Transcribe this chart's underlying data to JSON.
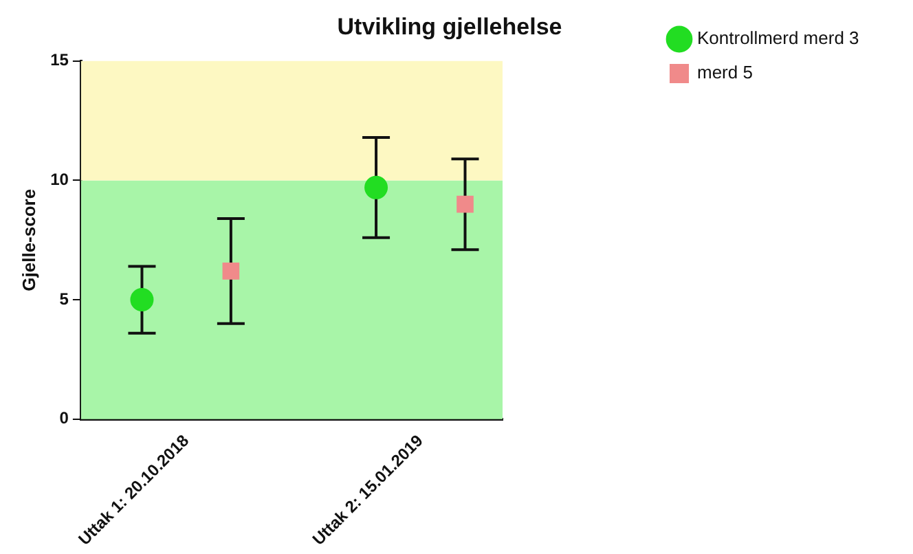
{
  "chart_data": {
    "type": "scatter",
    "title": "Utvikling gjellehelse",
    "ylabel": "Gjelle-score",
    "categories": [
      "Uttak 1: 20.10.2018",
      "Uttak 2: 15.01.2019"
    ],
    "series": [
      {
        "name": "Kontrollmerd merd 3",
        "color": "#22dd22",
        "marker": "circle",
        "values": [
          5.0,
          9.7
        ],
        "errors": [
          [
            3.6,
            6.4
          ],
          [
            7.6,
            11.8
          ]
        ]
      },
      {
        "name": "merd 5",
        "color": "#f08a8a",
        "marker": "square",
        "values": [
          6.2,
          9.0
        ],
        "errors": [
          [
            4.0,
            8.4
          ],
          [
            7.1,
            10.9
          ]
        ]
      }
    ],
    "ylim": [
      0,
      15
    ],
    "yticks": [
      0,
      5,
      10,
      15
    ],
    "grid": false,
    "legend": "top right",
    "bands": [
      {
        "axis": "y",
        "from": 0,
        "to": 10,
        "color": "#a8f5a8"
      },
      {
        "axis": "y",
        "from": 10,
        "to": 15,
        "color": "#fdf8c2"
      }
    ]
  }
}
